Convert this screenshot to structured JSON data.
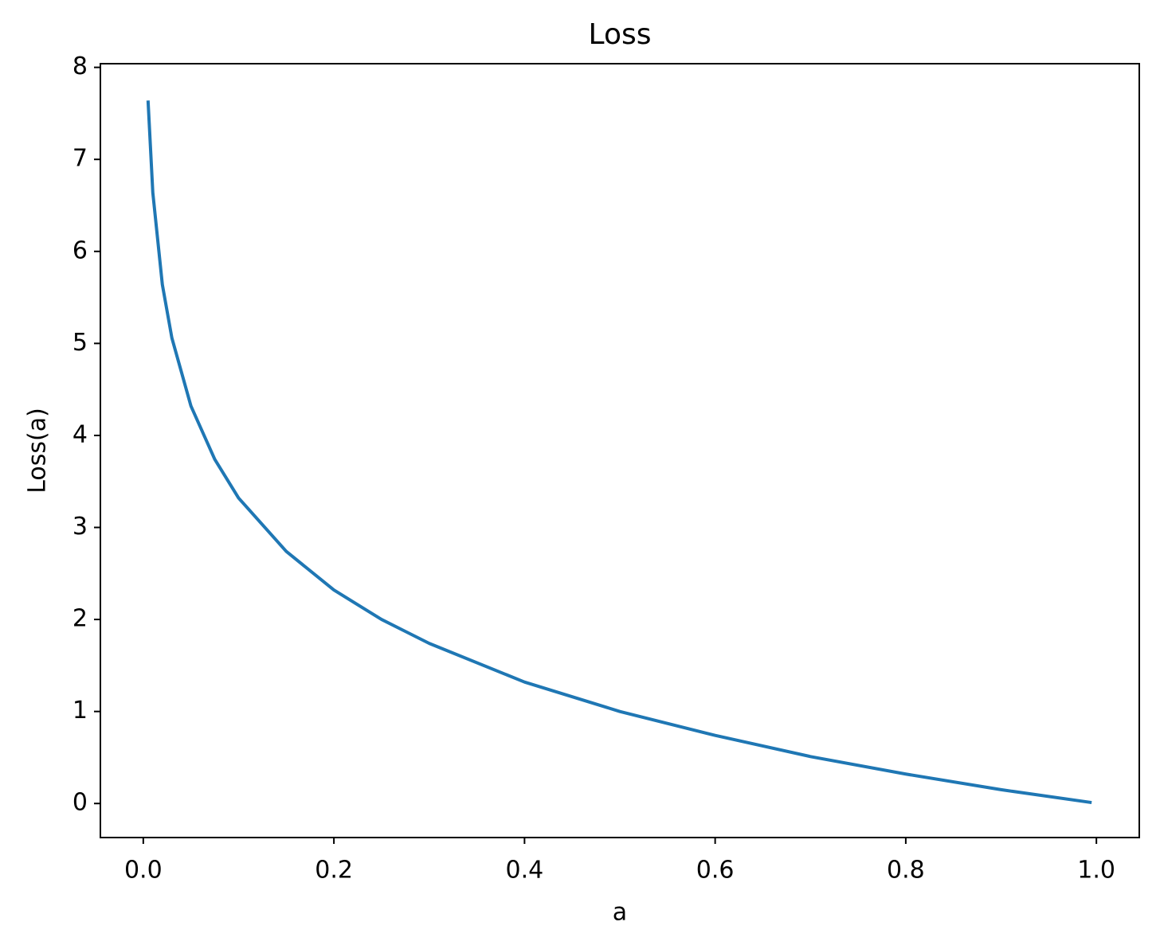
{
  "chart_data": {
    "type": "line",
    "title": "Loss",
    "x_label": "a",
    "y_label": "Loss(a)",
    "x": [
      0.005,
      0.01,
      0.02,
      0.03,
      0.05,
      0.075,
      0.1,
      0.15,
      0.2,
      0.25,
      0.3,
      0.4,
      0.5,
      0.6,
      0.7,
      0.8,
      0.9,
      0.995
    ],
    "series": [
      {
        "name": "Loss(a)",
        "color": "#1f77b4",
        "values": [
          7.64,
          6.64,
          5.64,
          5.06,
          4.32,
          3.74,
          3.32,
          2.74,
          2.32,
          2.0,
          1.74,
          1.32,
          1.0,
          0.74,
          0.51,
          0.32,
          0.15,
          0.01
        ]
      }
    ],
    "xlim": [
      -0.045,
      1.045
    ],
    "ylim": [
      -0.37,
      8.04
    ],
    "xticks": [
      {
        "value": 0,
        "label": "0.0"
      },
      0.2,
      0.4,
      0.6,
      0.8,
      {
        "value": 1,
        "label": "1.0"
      }
    ],
    "yticks": [
      0,
      1,
      2,
      3,
      4,
      5,
      6,
      7,
      8
    ],
    "grid": false
  }
}
